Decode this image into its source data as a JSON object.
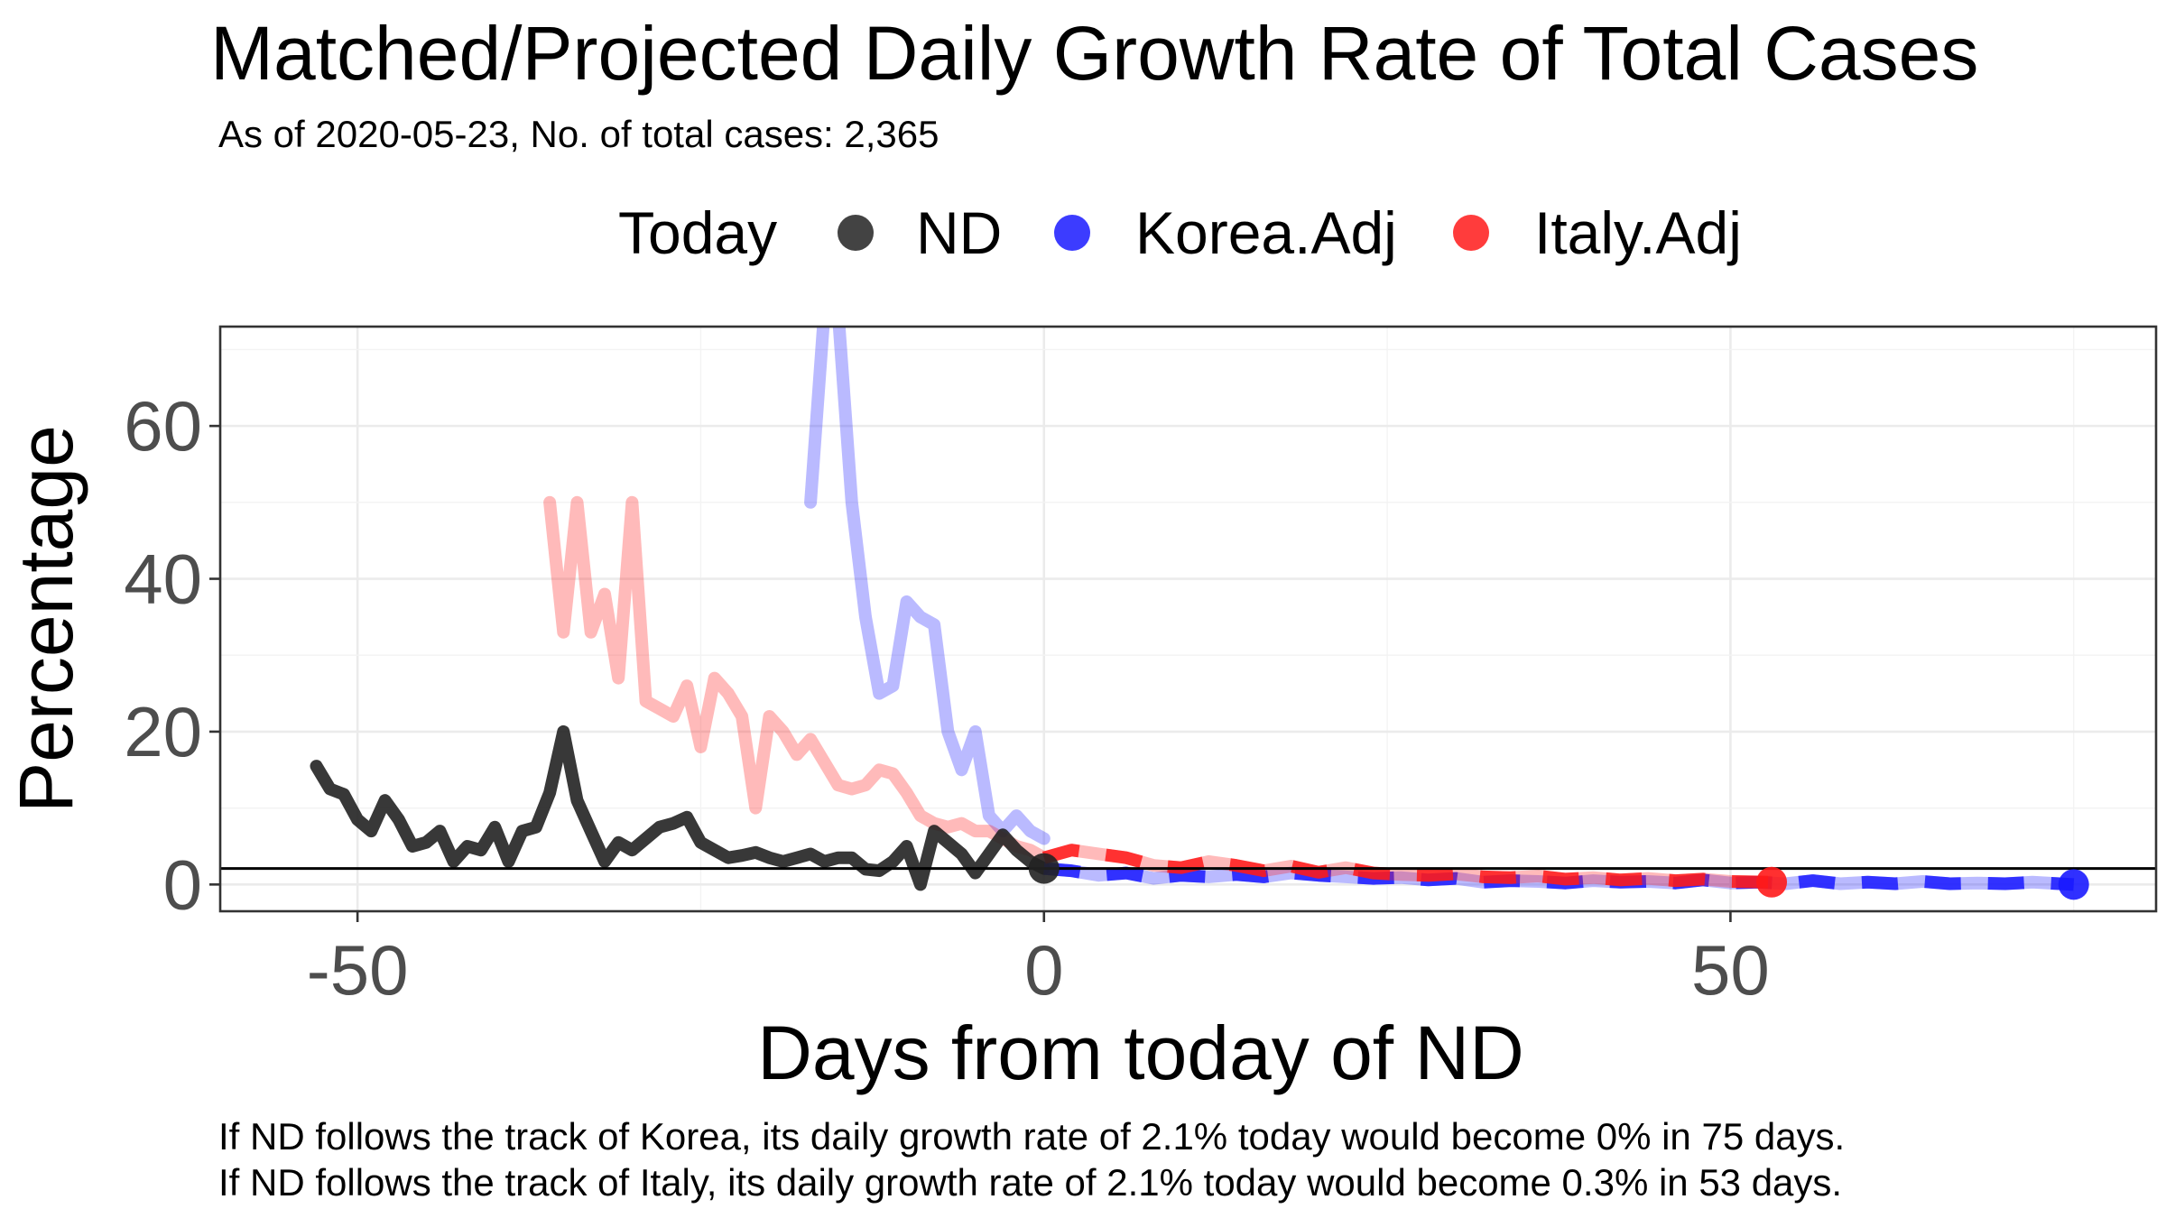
{
  "chart_data": {
    "type": "line",
    "title": "Matched/Projected Daily Growth Rate of Total Cases",
    "subtitle": "As of 2020-05-23, No. of total cases: 2,365",
    "xlabel": "Days from today of ND",
    "ylabel": "Percentage",
    "xlim": [
      -60,
      81
    ],
    "ylim": [
      -3.5,
      73
    ],
    "xticks": [
      -50,
      0,
      50
    ],
    "yticks": [
      0,
      20,
      40,
      60
    ],
    "grid": true,
    "reference_line": {
      "y": 2.1
    },
    "legend": {
      "title": "Today",
      "placement": "top",
      "entries": [
        {
          "label": "ND",
          "color": "#222222"
        },
        {
          "label": "Korea.Adj",
          "color": "#1a1aff"
        },
        {
          "label": "Italy.Adj",
          "color": "#ff1a1a"
        }
      ]
    },
    "series": [
      {
        "name": "ND",
        "color": "#222222",
        "kind": "history",
        "x": [
          -53,
          -52,
          -51,
          -50,
          -49,
          -48,
          -47,
          -46,
          -45,
          -44,
          -43,
          -42,
          -41,
          -40,
          -39,
          -38,
          -37,
          -36,
          -35,
          -34,
          -33,
          -32,
          -31,
          -30,
          -29,
          -28,
          -27,
          -26,
          -25,
          -24,
          -23,
          -22,
          -21,
          -20,
          -19,
          -18,
          -17,
          -16,
          -15,
          -14,
          -13,
          -12,
          -11,
          -10,
          -9,
          -8,
          -7,
          -6,
          -5,
          -4,
          -3,
          -2,
          -1,
          0
        ],
        "y": [
          15.5,
          12.5,
          11.8,
          8.5,
          7,
          11,
          8.5,
          5,
          5.5,
          7,
          3,
          5,
          4.5,
          7.5,
          3,
          7,
          7.5,
          12,
          20,
          11,
          7,
          3,
          5.5,
          4.5,
          6,
          7.5,
          8,
          8.8,
          5.5,
          4.5,
          3.5,
          3.8,
          4.2,
          3.5,
          3,
          3.5,
          4,
          3,
          3.5,
          3.5,
          2,
          1.8,
          3,
          5,
          0,
          7,
          5.5,
          4,
          1.5,
          4,
          6.5,
          4.5,
          3,
          2.1
        ]
      },
      {
        "name": "Korea.Adj",
        "color": "#1a1aff",
        "kind": "history",
        "x": [
          -17,
          -16,
          -15,
          -14,
          -13,
          -12,
          -11,
          -10,
          -9,
          -8,
          -7,
          -6,
          -5,
          -4,
          -3,
          -2,
          -1,
          0
        ],
        "y": [
          50,
          75,
          75,
          50,
          35,
          25,
          26,
          37,
          35,
          34,
          20,
          15,
          20,
          9,
          7,
          9,
          7,
          6
        ]
      },
      {
        "name": "Korea.Adj",
        "color": "#1a1aff",
        "kind": "projection",
        "x": [
          0,
          2,
          4,
          6,
          8,
          10,
          12,
          14,
          16,
          18,
          20,
          22,
          24,
          26,
          28,
          30,
          32,
          34,
          36,
          38,
          40,
          42,
          44,
          46,
          48,
          50,
          52,
          54,
          56,
          58,
          60,
          62,
          64,
          66,
          68,
          70,
          72,
          75
        ],
        "y": [
          2.1,
          1.8,
          1.2,
          1.5,
          0.8,
          1.2,
          1,
          1.3,
          1,
          1.5,
          1.2,
          1,
          0.8,
          0.9,
          0.6,
          0.8,
          0.3,
          0.5,
          0.4,
          0.2,
          0.5,
          0.3,
          0.4,
          0.2,
          0.6,
          0.2,
          0.3,
          0.1,
          0.5,
          0.1,
          0.3,
          0.1,
          0.4,
          0.1,
          0.2,
          0.1,
          0.3,
          0
        ]
      },
      {
        "name": "Italy.Adj",
        "color": "#ff1a1a",
        "kind": "history",
        "x": [
          -36,
          -35,
          -34,
          -33,
          -32,
          -31,
          -30,
          -29,
          -28,
          -27,
          -26,
          -25,
          -24,
          -23,
          -22,
          -21,
          -20,
          -19,
          -18,
          -17,
          -16,
          -15,
          -14,
          -13,
          -12,
          -11,
          -10,
          -9,
          -8,
          -7,
          -6,
          -5,
          -4,
          -3,
          -2,
          -1,
          0
        ],
        "y": [
          50,
          33,
          50,
          33,
          38,
          27,
          50,
          24,
          23,
          22,
          26,
          18,
          27,
          25,
          22,
          10,
          22,
          20,
          17,
          19,
          16,
          13,
          12.5,
          13,
          15,
          14.5,
          12,
          9,
          8,
          7.5,
          8,
          7,
          7,
          6,
          5,
          4.5,
          3.5
        ]
      },
      {
        "name": "Italy.Adj",
        "color": "#ff1a1a",
        "kind": "projection",
        "x": [
          0,
          2,
          4,
          6,
          8,
          10,
          12,
          14,
          16,
          18,
          20,
          22,
          24,
          26,
          28,
          30,
          32,
          34,
          36,
          38,
          40,
          42,
          44,
          46,
          48,
          50,
          53
        ],
        "y": [
          3.5,
          4.5,
          4,
          3.5,
          2.5,
          2.2,
          3,
          2.5,
          1.8,
          2.4,
          1.6,
          2.2,
          1.5,
          1.3,
          1.2,
          1.4,
          1,
          0.9,
          1.1,
          0.7,
          0.9,
          0.6,
          0.8,
          0.5,
          0.7,
          0.4,
          0.3
        ]
      }
    ],
    "endpoints": [
      {
        "name": "ND",
        "x": 0,
        "y": 2.1,
        "color": "#222222"
      },
      {
        "name": "Korea.Adj",
        "x": 75,
        "y": 0,
        "color": "#1a1aff"
      },
      {
        "name": "Italy.Adj",
        "x": 53,
        "y": 0.3,
        "color": "#ff1a1a"
      }
    ],
    "captions": [
      "If ND follows the track of Korea, its daily growth rate of 2.1% today would become 0% in 75 days.",
      "If ND follows the track of Italy, its daily growth rate of 2.1% today would become 0.3% in 53 days."
    ]
  }
}
